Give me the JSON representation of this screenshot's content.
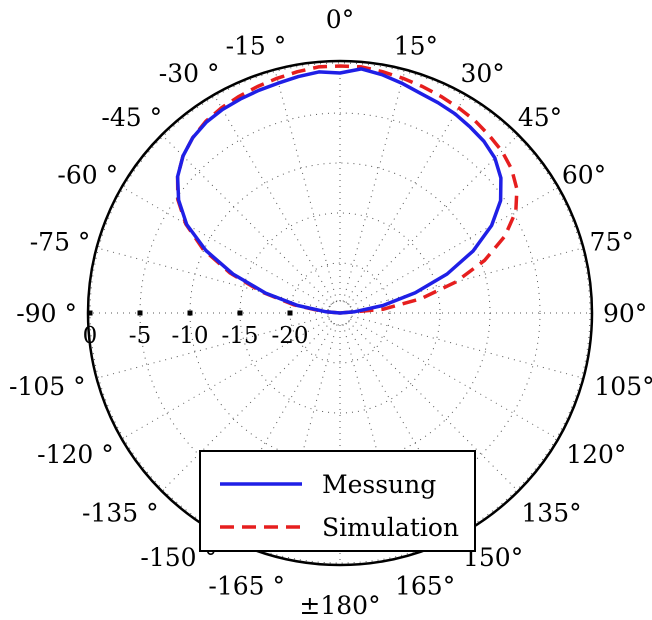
{
  "chart_data": {
    "type": "polar",
    "angle_tick_labels": [
      "0°",
      "15°",
      "30°",
      "45°",
      "60°",
      "75°",
      "90°",
      "105°",
      "120°",
      "135°",
      "150°",
      "165°",
      "±180°",
      "-165 °",
      "-150 °",
      "-135 °",
      "-120 °",
      "-105 °",
      "-90 °",
      "-75 °",
      "-60 °",
      "-45 °",
      "-30 °",
      "-15 °"
    ],
    "angle_tick_degrees": [
      0,
      15,
      30,
      45,
      60,
      75,
      90,
      105,
      120,
      135,
      150,
      165,
      180,
      -165,
      -150,
      -135,
      -120,
      -105,
      -90,
      -75,
      -60,
      -45,
      -30,
      -15
    ],
    "radial_tick_labels": [
      "0",
      "-5",
      "-10",
      "-15",
      "-20"
    ],
    "radial_tick_values": [
      0,
      -5,
      -10,
      -15,
      -20
    ],
    "rlim": [
      -25,
      0
    ],
    "grid": true,
    "legend_position": "bottom",
    "angle_orientation": "0 at top, clockwise",
    "series": [
      {
        "name": "Messung",
        "color": "#1f1fe6",
        "line_style": "solid",
        "angles": [
          -90,
          -85,
          -80,
          -75,
          -70,
          -65,
          -60,
          -55,
          -50,
          -45,
          -40,
          -35,
          -30,
          -25,
          -20,
          -15,
          -10,
          -5,
          0,
          5,
          10,
          15,
          20,
          25,
          30,
          35,
          40,
          45,
          50,
          55,
          60,
          65,
          70,
          75,
          80,
          85,
          90
        ],
        "values": [
          -25,
          -23.6,
          -20.7,
          -17.3,
          -13.6,
          -10.2,
          -7.3,
          -5.3,
          -3.8,
          -2.8,
          -2.1,
          -1.7,
          -1.5,
          -1.4,
          -1.3,
          -1.2,
          -1.0,
          -0.8,
          -1.0,
          -0.5,
          -0.8,
          -1.2,
          -1.6,
          -1.8,
          -2.0,
          -2.3,
          -2.6,
          -3.1,
          -4.0,
          -5.4,
          -7.5,
          -10.3,
          -13.6,
          -17.2,
          -20.6,
          -23.5,
          -25
        ]
      },
      {
        "name": "Simulation",
        "color": "#e61e1e",
        "line_style": "dashed",
        "angles": [
          -90,
          -85,
          -80,
          -75,
          -70,
          -65,
          -60,
          -55,
          -50,
          -45,
          -40,
          -35,
          -30,
          -25,
          -20,
          -15,
          -10,
          -5,
          0,
          5,
          10,
          15,
          20,
          25,
          30,
          35,
          40,
          45,
          50,
          55,
          60,
          65,
          70,
          75,
          80,
          85,
          90
        ],
        "values": [
          -25,
          -23.3,
          -20.3,
          -16.9,
          -13.3,
          -9.9,
          -7.2,
          -5.2,
          -3.8,
          -2.8,
          -2.1,
          -1.6,
          -1.3,
          -1.1,
          -0.9,
          -0.7,
          -0.5,
          -0.3,
          -0.3,
          -0.3,
          -0.5,
          -0.7,
          -0.9,
          -1.1,
          -1.3,
          -1.5,
          -1.8,
          -2.1,
          -2.6,
          -3.4,
          -4.7,
          -6.8,
          -9.6,
          -13.0,
          -16.8,
          -20.7,
          -25
        ]
      }
    ]
  }
}
